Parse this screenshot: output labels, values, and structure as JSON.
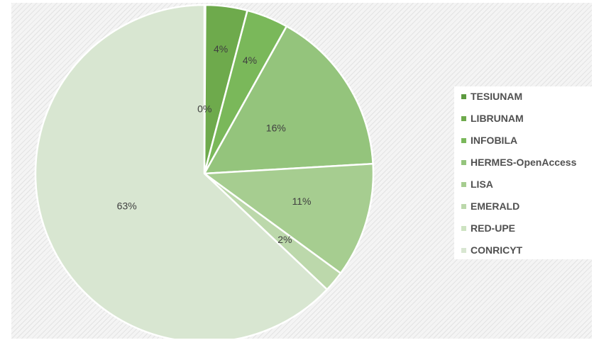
{
  "chart_data": {
    "type": "pie",
    "categories": [
      "TESIUNAM",
      "LIBRUNAM",
      "INFOBILA",
      "HERMES-OpenAccess",
      "LISA",
      "EMERALD",
      "RED-UPE",
      "CONRICYT"
    ],
    "values": [
      0.1,
      4,
      4,
      16,
      11,
      2,
      0,
      63
    ],
    "data_labels": [
      "0%",
      "4%",
      "4%",
      "16%",
      "11%",
      "2%",
      "",
      "63%"
    ],
    "colors": [
      "#5d9a40",
      "#6eaa4c",
      "#7ab85a",
      "#94c47c",
      "#a6cd90",
      "#bcd8ab",
      "#cde3c1",
      "#d8e6d1"
    ],
    "legend_position": "right",
    "start_angle_deg": 0,
    "direction": "clockwise"
  }
}
